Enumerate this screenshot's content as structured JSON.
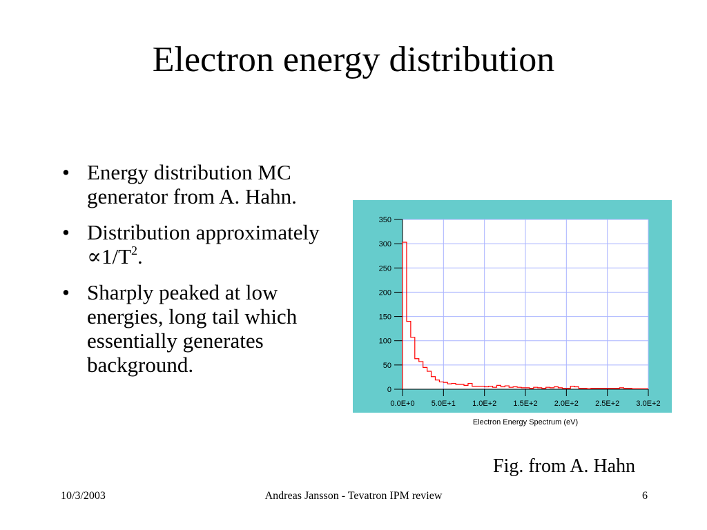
{
  "slide": {
    "title": "Electron energy distribution",
    "bullets": [
      {
        "text": "Energy distribution MC generator from A. Hahn."
      },
      {
        "text_before": "Distribution approximately ∝1/T",
        "sup": "2",
        "text_after": "."
      },
      {
        "text": "Sharply peaked at low energies, long tail which essentially generates background."
      }
    ],
    "bullet_glyph": "•",
    "caption": "Fig. from A. Hahn",
    "footer": {
      "date": "10/3/2003",
      "center": "Andreas Jansson - Tevatron IPM review",
      "page": "6"
    }
  },
  "chart_data": {
    "type": "line",
    "style": "step",
    "xlabel": "Electron  Energy Spectrum (eV)",
    "ylabel": "",
    "xlim": [
      0,
      300
    ],
    "ylim": [
      0,
      350
    ],
    "x_ticks": [
      0,
      50,
      100,
      150,
      200,
      250,
      300
    ],
    "x_tick_labels": [
      "0.0E+0",
      "5.0E+1",
      "1.0E+2",
      "1.5E+2",
      "2.0E+2",
      "2.5E+2",
      "3.0E+2"
    ],
    "y_ticks": [
      0,
      50,
      100,
      150,
      200,
      250,
      300,
      350
    ],
    "y_tick_labels": [
      "0",
      "50",
      "100",
      "150",
      "200",
      "250",
      "300",
      "350"
    ],
    "grid": true,
    "colors": {
      "background": "#66cccc",
      "plot_area": "#ffffff",
      "grid": "#aab4ff",
      "series": "#ff0000"
    },
    "series": [
      {
        "x": [
          0,
          5,
          10,
          15,
          20,
          25,
          30,
          35,
          40,
          45,
          50,
          55,
          60,
          65,
          70,
          75,
          80,
          85,
          90,
          95,
          100,
          105,
          110,
          115,
          120,
          125,
          130,
          135,
          140,
          145,
          150,
          155,
          160,
          165,
          170,
          175,
          180,
          185,
          190,
          195,
          200,
          205,
          210,
          215,
          220,
          225,
          230,
          235,
          240,
          245,
          250,
          255,
          260,
          265,
          270,
          275,
          280,
          285,
          290,
          295,
          300
        ],
        "values": [
          303,
          140,
          107,
          63,
          57,
          45,
          37,
          26,
          19,
          15,
          14,
          11,
          12,
          10,
          10,
          8,
          12,
          6,
          6,
          6,
          5,
          6,
          4,
          8,
          5,
          7,
          4,
          5,
          4,
          3,
          3,
          2,
          4,
          3,
          2,
          4,
          3,
          5,
          3,
          2,
          2,
          6,
          5,
          2,
          2,
          1,
          2,
          2,
          2,
          2,
          2,
          2,
          2,
          3,
          2,
          2,
          1,
          1,
          1,
          1,
          1
        ]
      }
    ]
  }
}
